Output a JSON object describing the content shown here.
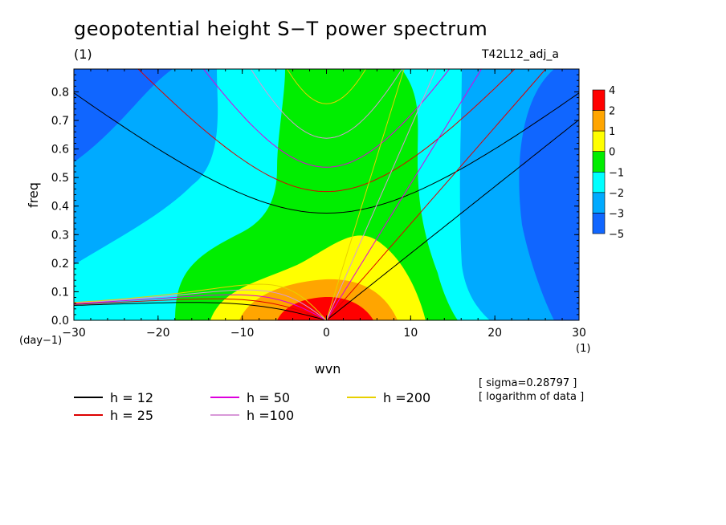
{
  "title": "geopotential height S−T power spectrum",
  "subtitle": "(1)",
  "run_id": "T42L12_adj_a",
  "notes": [
    "[ sigma=0.28797 ]",
    "[ logarithm of data ]"
  ],
  "chart_data": {
    "type": "heatmap",
    "xlabel": "wvn",
    "ylabel": "freq",
    "x_unit": "(1)",
    "y_unit": "(day−1)",
    "xlim": [
      -30,
      30
    ],
    "ylim": [
      0,
      0.88
    ],
    "x_ticks": [
      -30,
      -20,
      -10,
      0,
      10,
      20,
      30
    ],
    "x_tick_labels": [
      "−30",
      "−20",
      "−10",
      "0",
      "10",
      "20",
      "30"
    ],
    "y_ticks": [
      0.0,
      0.1,
      0.2,
      0.3,
      0.4,
      0.5,
      0.6,
      0.7,
      0.8
    ],
    "y_tick_labels": [
      "0.0",
      "0.1",
      "0.2",
      "0.3",
      "0.4",
      "0.5",
      "0.6",
      "0.7",
      "0.8"
    ],
    "colorbar": {
      "labels": [
        "4",
        "2",
        "1",
        "0",
        "−1",
        "−2",
        "−3",
        "−5"
      ],
      "colors": [
        "#ff0000",
        "#ffa500",
        "#ffff00",
        "#00ee00",
        "#00ffff",
        "#00aaff",
        "#1066ff"
      ]
    },
    "dispersion_curves": [
      {
        "name": "h = 12",
        "label": "h = 12",
        "color": "#000000",
        "h": 12
      },
      {
        "name": "h = 25",
        "label": "h = 25",
        "color": "#dd0000",
        "h": 25
      },
      {
        "name": "h = 50",
        "label": "h = 50",
        "color": "#dd00dd",
        "h": 50
      },
      {
        "name": "h =100",
        "label": "h =100",
        "color": "#d898d8",
        "h": 100
      },
      {
        "name": "h =200",
        "label": "h =200",
        "color": "#e8d000",
        "h": 200
      }
    ],
    "grid": false
  }
}
